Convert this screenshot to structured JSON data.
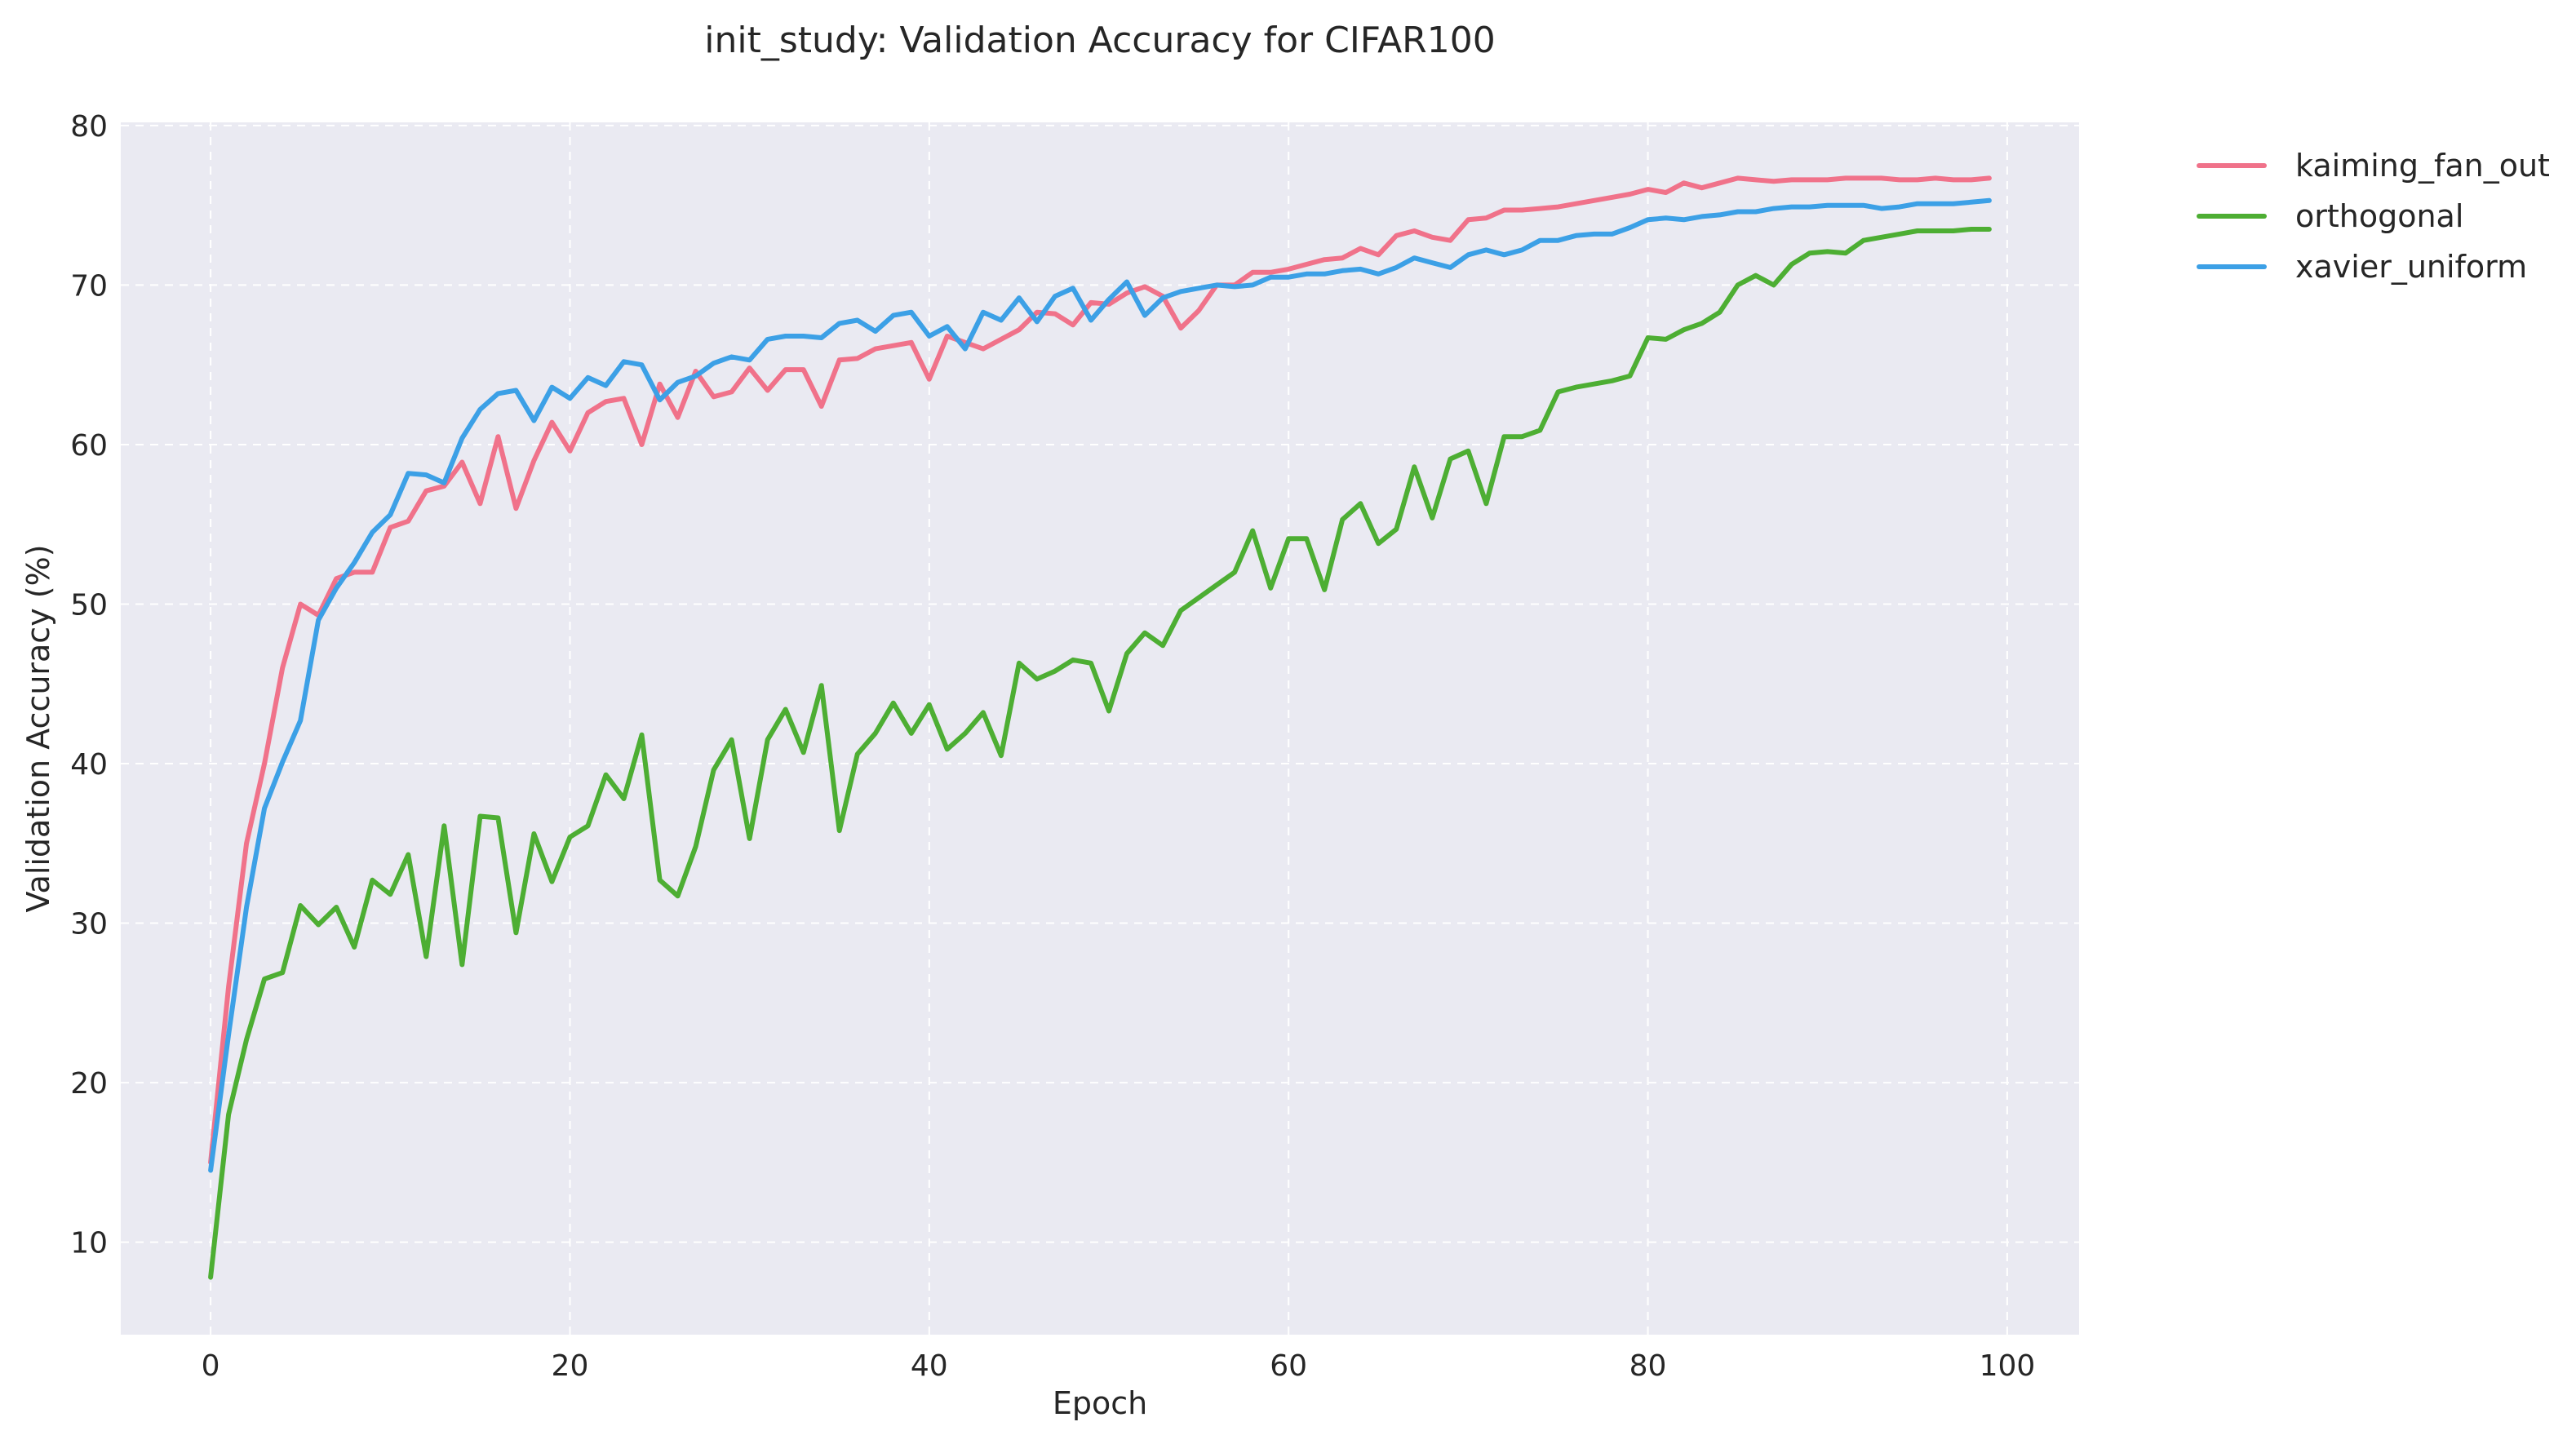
{
  "chart_data": {
    "type": "line",
    "title": "init_study: Validation Accuracy for CIFAR100",
    "xlabel": "Epoch",
    "ylabel": "Validation Accuracy (%)",
    "xlim": [
      -5,
      104
    ],
    "ylim": [
      4.2,
      80.2
    ],
    "xticks": [
      0,
      20,
      40,
      60,
      80,
      100
    ],
    "yticks": [
      10,
      20,
      30,
      40,
      50,
      60,
      70,
      80
    ],
    "grid": true,
    "legend_position": "outside-top-right",
    "background_color": "#eaeaf2",
    "series": [
      {
        "name": "kaiming_fan_out",
        "color": "#f0728a",
        "x": [
          0,
          1,
          2,
          3,
          4,
          5,
          6,
          7,
          8,
          9,
          10,
          11,
          12,
          13,
          14,
          15,
          16,
          17,
          18,
          19,
          20,
          21,
          22,
          23,
          24,
          25,
          26,
          27,
          28,
          29,
          30,
          31,
          32,
          33,
          34,
          35,
          36,
          37,
          38,
          39,
          40,
          41,
          42,
          43,
          44,
          45,
          46,
          47,
          48,
          49,
          50,
          51,
          52,
          53,
          54,
          55,
          56,
          57,
          58,
          59,
          60,
          61,
          62,
          63,
          64,
          65,
          66,
          67,
          68,
          69,
          70,
          71,
          72,
          73,
          74,
          75,
          76,
          77,
          78,
          79,
          80,
          81,
          82,
          83,
          84,
          85,
          86,
          87,
          88,
          89,
          90,
          91,
          92,
          93,
          94,
          95,
          96,
          97,
          98,
          99
        ],
        "values": [
          15.0,
          26.0,
          35.0,
          40.0,
          46.0,
          50.0,
          49.3,
          51.6,
          52.0,
          52.0,
          54.8,
          55.2,
          57.1,
          57.4,
          58.9,
          56.3,
          60.5,
          56.0,
          59.0,
          61.4,
          59.6,
          62.0,
          62.7,
          62.9,
          60.0,
          63.8,
          61.7,
          64.6,
          63.0,
          63.3,
          64.8,
          63.4,
          64.7,
          64.7,
          62.4,
          65.3,
          65.4,
          66.0,
          66.2,
          66.4,
          64.1,
          66.8,
          66.4,
          66.0,
          66.6,
          67.2,
          68.3,
          68.2,
          67.5,
          68.9,
          68.8,
          69.5,
          69.9,
          69.3,
          67.3,
          68.4,
          70.0,
          70.0,
          70.8,
          70.8,
          71.0,
          71.3,
          71.6,
          71.7,
          72.3,
          71.9,
          73.1,
          73.4,
          73.0,
          72.8,
          74.1,
          74.2,
          74.7,
          74.7,
          74.8,
          74.9,
          75.1,
          75.3,
          75.5,
          75.7,
          76.0,
          75.8,
          76.4,
          76.1,
          76.4,
          76.7,
          76.6,
          76.5,
          76.6,
          76.6,
          76.6,
          76.7,
          76.7,
          76.7,
          76.6,
          76.6,
          76.7,
          76.6,
          76.6,
          76.7
        ]
      },
      {
        "name": "orthogonal",
        "color": "#4dae33",
        "x": [
          0,
          1,
          2,
          3,
          4,
          5,
          6,
          7,
          8,
          9,
          10,
          11,
          12,
          13,
          14,
          15,
          16,
          17,
          18,
          19,
          20,
          21,
          22,
          23,
          24,
          25,
          26,
          27,
          28,
          29,
          30,
          31,
          32,
          33,
          34,
          35,
          36,
          37,
          38,
          39,
          40,
          41,
          42,
          43,
          44,
          45,
          46,
          47,
          48,
          49,
          50,
          51,
          52,
          53,
          54,
          55,
          56,
          57,
          58,
          59,
          60,
          61,
          62,
          63,
          64,
          65,
          66,
          67,
          68,
          69,
          70,
          71,
          72,
          73,
          74,
          75,
          76,
          77,
          78,
          79,
          80,
          81,
          82,
          83,
          84,
          85,
          86,
          87,
          88,
          89,
          90,
          91,
          92,
          93,
          94,
          95,
          96,
          97,
          98,
          99
        ],
        "values": [
          7.8,
          18.0,
          22.7,
          26.5,
          26.9,
          31.1,
          29.9,
          31.0,
          28.5,
          32.7,
          31.8,
          34.3,
          27.9,
          36.1,
          27.4,
          36.7,
          36.6,
          29.4,
          35.6,
          32.6,
          35.4,
          36.1,
          39.3,
          37.8,
          41.8,
          32.7,
          31.7,
          34.8,
          39.6,
          41.5,
          35.3,
          41.5,
          43.4,
          40.7,
          44.9,
          35.8,
          40.6,
          41.9,
          43.8,
          41.9,
          43.7,
          40.9,
          41.9,
          43.2,
          40.5,
          46.3,
          45.3,
          45.8,
          46.5,
          46.3,
          43.3,
          46.9,
          48.2,
          47.4,
          49.6,
          50.4,
          51.2,
          52.0,
          54.6,
          51.0,
          54.1,
          54.1,
          50.9,
          55.3,
          56.3,
          53.8,
          54.7,
          58.6,
          55.4,
          59.1,
          59.6,
          56.3,
          60.5,
          60.5,
          60.9,
          63.3,
          63.6,
          63.8,
          64.0,
          64.3,
          66.7,
          66.6,
          67.2,
          67.6,
          68.3,
          70.0,
          70.6,
          70.0,
          71.3,
          72.0,
          72.1,
          72.0,
          72.8,
          73.0,
          73.2,
          73.4,
          73.4,
          73.4,
          73.5,
          73.5
        ]
      },
      {
        "name": "xavier_uniform",
        "color": "#3ca0e6",
        "x": [
          0,
          1,
          2,
          3,
          4,
          5,
          6,
          7,
          8,
          9,
          10,
          11,
          12,
          13,
          14,
          15,
          16,
          17,
          18,
          19,
          20,
          21,
          22,
          23,
          24,
          25,
          26,
          27,
          28,
          29,
          30,
          31,
          32,
          33,
          34,
          35,
          36,
          37,
          38,
          39,
          40,
          41,
          42,
          43,
          44,
          45,
          46,
          47,
          48,
          49,
          50,
          51,
          52,
          53,
          54,
          55,
          56,
          57,
          58,
          59,
          60,
          61,
          62,
          63,
          64,
          65,
          66,
          67,
          68,
          69,
          70,
          71,
          72,
          73,
          74,
          75,
          76,
          77,
          78,
          79,
          80,
          81,
          82,
          83,
          84,
          85,
          86,
          87,
          88,
          89,
          90,
          91,
          92,
          93,
          94,
          95,
          96,
          97,
          98,
          99
        ],
        "values": [
          14.5,
          23.0,
          31.0,
          37.2,
          40.1,
          42.7,
          49.0,
          51.0,
          52.6,
          54.5,
          55.6,
          58.2,
          58.1,
          57.6,
          60.4,
          62.2,
          63.2,
          63.4,
          61.5,
          63.6,
          62.9,
          64.2,
          63.7,
          65.2,
          65.0,
          62.8,
          63.9,
          64.3,
          65.1,
          65.5,
          65.3,
          66.6,
          66.8,
          66.8,
          66.7,
          67.6,
          67.8,
          67.1,
          68.1,
          68.3,
          66.8,
          67.4,
          66.0,
          68.3,
          67.8,
          69.2,
          67.7,
          69.3,
          69.8,
          67.8,
          69.1,
          70.2,
          68.1,
          69.2,
          69.6,
          69.8,
          70.0,
          69.9,
          70.0,
          70.5,
          70.5,
          70.7,
          70.7,
          70.9,
          71.0,
          70.7,
          71.1,
          71.7,
          71.4,
          71.1,
          71.9,
          72.2,
          71.9,
          72.2,
          72.8,
          72.8,
          73.1,
          73.2,
          73.2,
          73.6,
          74.1,
          74.2,
          74.1,
          74.3,
          74.4,
          74.6,
          74.6,
          74.8,
          74.9,
          74.9,
          75.0,
          75.0,
          75.0,
          74.8,
          74.9,
          75.1,
          75.1,
          75.1,
          75.2,
          75.3
        ]
      }
    ]
  }
}
